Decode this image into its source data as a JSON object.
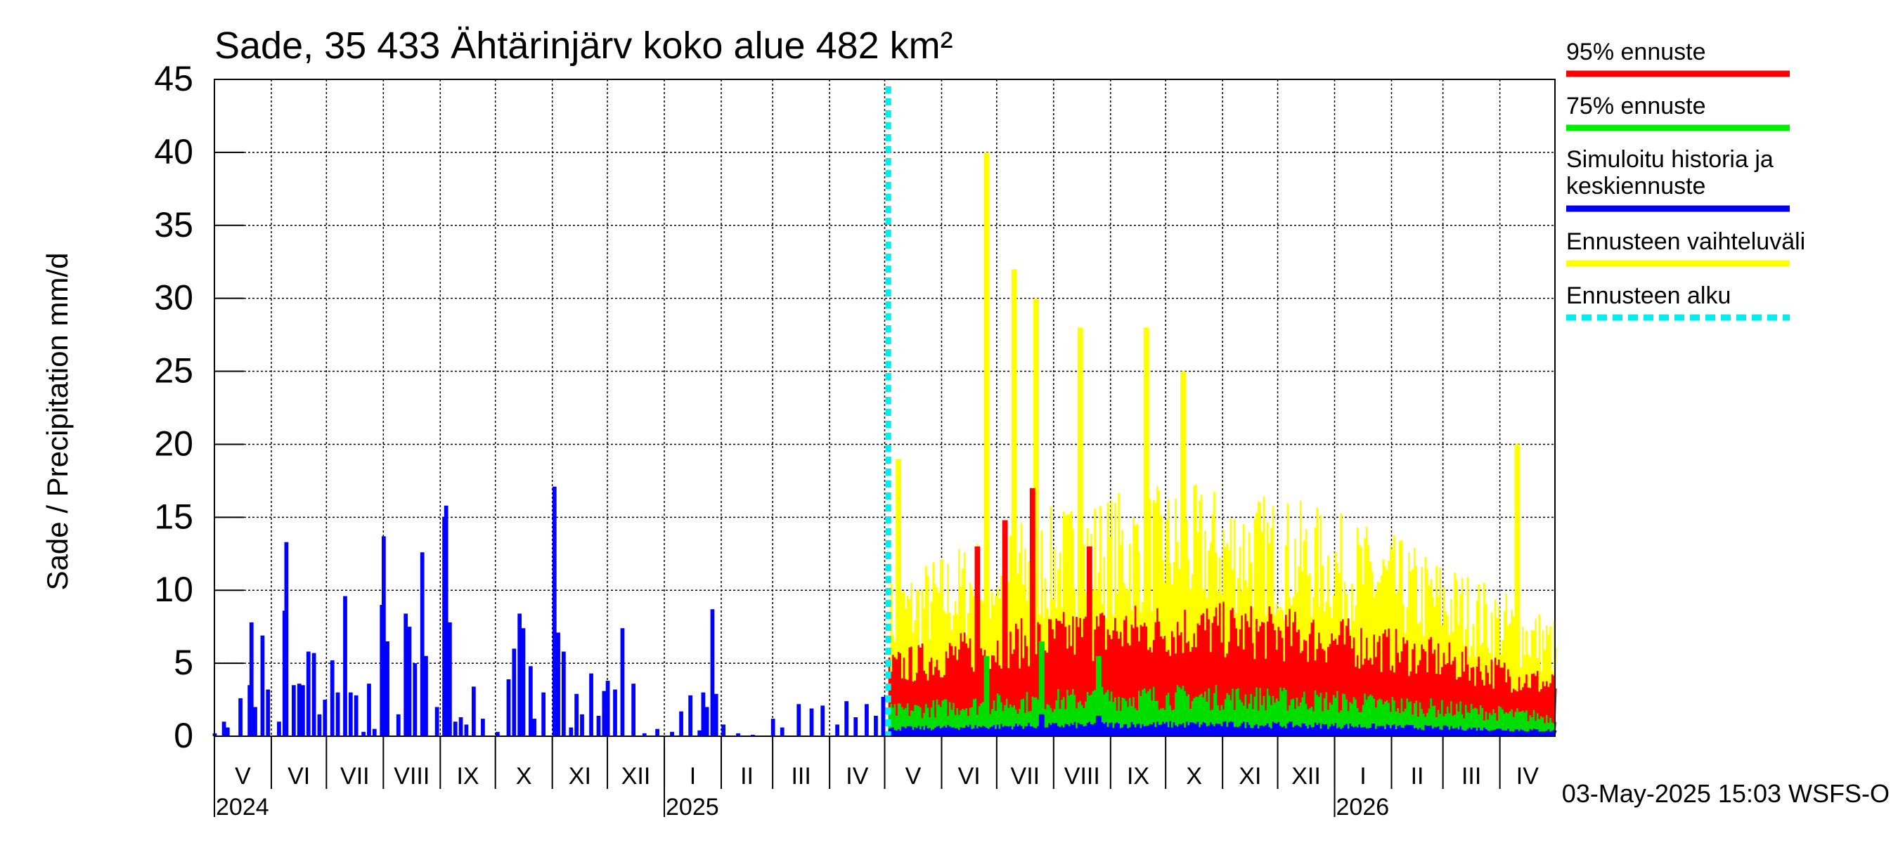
{
  "chart_data": {
    "type": "bar",
    "title": "Sade, 35 433 Ähtärinjärv koko alue 482 km²",
    "ylabel": "Sade / Precipitation   mm/d",
    "ylim": [
      0,
      45
    ],
    "yticks": [
      0,
      5,
      10,
      15,
      20,
      25,
      30,
      35,
      40,
      45
    ],
    "grid": true,
    "legend_position": "right",
    "x_start": "2024-05-01",
    "x_end": "2026-05-01",
    "forecast_start": "2025-05-03",
    "month_labels": [
      {
        "label": "V",
        "start": "2024-05-01",
        "end": "2024-06-01"
      },
      {
        "label": "VI",
        "start": "2024-06-01",
        "end": "2024-07-01"
      },
      {
        "label": "VII",
        "start": "2024-07-01",
        "end": "2024-08-01"
      },
      {
        "label": "VIII",
        "start": "2024-08-01",
        "end": "2024-09-01"
      },
      {
        "label": "IX",
        "start": "2024-09-01",
        "end": "2024-10-01"
      },
      {
        "label": "X",
        "start": "2024-10-01",
        "end": "2024-11-01"
      },
      {
        "label": "XI",
        "start": "2024-11-01",
        "end": "2024-12-01"
      },
      {
        "label": "XII",
        "start": "2024-12-01",
        "end": "2025-01-01"
      },
      {
        "label": "I",
        "start": "2025-01-01",
        "end": "2025-02-01"
      },
      {
        "label": "II",
        "start": "2025-02-01",
        "end": "2025-03-01"
      },
      {
        "label": "III",
        "start": "2025-03-01",
        "end": "2025-04-01"
      },
      {
        "label": "IV",
        "start": "2025-04-01",
        "end": "2025-05-01"
      },
      {
        "label": "V",
        "start": "2025-05-01",
        "end": "2025-06-01"
      },
      {
        "label": "VI",
        "start": "2025-06-01",
        "end": "2025-07-01"
      },
      {
        "label": "VII",
        "start": "2025-07-01",
        "end": "2025-08-01"
      },
      {
        "label": "VIII",
        "start": "2025-08-01",
        "end": "2025-09-01"
      },
      {
        "label": "IX",
        "start": "2025-09-01",
        "end": "2025-10-01"
      },
      {
        "label": "X",
        "start": "2025-10-01",
        "end": "2025-11-01"
      },
      {
        "label": "XI",
        "start": "2025-11-01",
        "end": "2025-12-01"
      },
      {
        "label": "XII",
        "start": "2025-12-01",
        "end": "2026-01-01"
      },
      {
        "label": "I",
        "start": "2026-01-01",
        "end": "2026-02-01"
      },
      {
        "label": "II",
        "start": "2026-02-01",
        "end": "2026-03-01"
      },
      {
        "label": "III",
        "start": "2026-03-01",
        "end": "2026-04-01"
      },
      {
        "label": "IV",
        "start": "2026-04-01",
        "end": "2026-05-01"
      }
    ],
    "year_labels": [
      {
        "label": "2024",
        "date": "2024-05-01"
      },
      {
        "label": "2025",
        "date": "2025-01-01"
      },
      {
        "label": "2026",
        "date": "2026-01-01"
      }
    ],
    "history": {
      "name": "Simuloitu historia ja keskiennuste",
      "color": "#0000ff",
      "points": [
        [
          "2024-05-01",
          0.2
        ],
        [
          "2024-05-06",
          1.0
        ],
        [
          "2024-05-08",
          0.6
        ],
        [
          "2024-05-15",
          2.6
        ],
        [
          "2024-05-20",
          3.5
        ],
        [
          "2024-05-21",
          7.8
        ],
        [
          "2024-05-23",
          2.0
        ],
        [
          "2024-05-27",
          6.9
        ],
        [
          "2024-05-30",
          3.2
        ],
        [
          "2024-06-05",
          1.0
        ],
        [
          "2024-06-08",
          8.6
        ],
        [
          "2024-06-09",
          13.3
        ],
        [
          "2024-06-13",
          3.5
        ],
        [
          "2024-06-16",
          3.6
        ],
        [
          "2024-06-18",
          3.5
        ],
        [
          "2024-06-21",
          5.8
        ],
        [
          "2024-06-24",
          5.7
        ],
        [
          "2024-06-27",
          1.5
        ],
        [
          "2024-06-30",
          2.5
        ],
        [
          "2024-07-04",
          5.2
        ],
        [
          "2024-07-07",
          3.0
        ],
        [
          "2024-07-11",
          9.6
        ],
        [
          "2024-07-14",
          3.0
        ],
        [
          "2024-07-17",
          2.8
        ],
        [
          "2024-07-21",
          0.3
        ],
        [
          "2024-07-24",
          3.6
        ],
        [
          "2024-07-27",
          0.5
        ],
        [
          "2024-07-31",
          9.0
        ],
        [
          "2024-08-01",
          13.7
        ],
        [
          "2024-08-03",
          6.5
        ],
        [
          "2024-08-09",
          1.5
        ],
        [
          "2024-08-13",
          8.4
        ],
        [
          "2024-08-15",
          7.5
        ],
        [
          "2024-08-18",
          5.0
        ],
        [
          "2024-08-22",
          12.6
        ],
        [
          "2024-08-24",
          5.5
        ],
        [
          "2024-08-30",
          2.0
        ],
        [
          "2024-09-03",
          15.0
        ],
        [
          "2024-09-04",
          15.8
        ],
        [
          "2024-09-06",
          7.8
        ],
        [
          "2024-09-09",
          1.0
        ],
        [
          "2024-09-12",
          1.3
        ],
        [
          "2024-09-15",
          0.8
        ],
        [
          "2024-09-19",
          3.4
        ],
        [
          "2024-09-24",
          1.2
        ],
        [
          "2024-10-02",
          0.3
        ],
        [
          "2024-10-08",
          3.9
        ],
        [
          "2024-10-11",
          6.0
        ],
        [
          "2024-10-14",
          8.4
        ],
        [
          "2024-10-16",
          7.4
        ],
        [
          "2024-10-20",
          4.8
        ],
        [
          "2024-10-22",
          1.2
        ],
        [
          "2024-10-27",
          3.0
        ],
        [
          "2024-11-02",
          17.1
        ],
        [
          "2024-11-04",
          7.1
        ],
        [
          "2024-11-07",
          5.8
        ],
        [
          "2024-11-11",
          0.6
        ],
        [
          "2024-11-14",
          2.9
        ],
        [
          "2024-11-17",
          1.5
        ],
        [
          "2024-11-22",
          4.3
        ],
        [
          "2024-11-26",
          1.4
        ],
        [
          "2024-11-29",
          3.1
        ],
        [
          "2024-12-01",
          3.8
        ],
        [
          "2024-12-05",
          3.2
        ],
        [
          "2024-12-09",
          7.4
        ],
        [
          "2024-12-15",
          3.6
        ],
        [
          "2024-12-21",
          0.2
        ],
        [
          "2024-12-28",
          0.5
        ],
        [
          "2025-01-05",
          0.3
        ],
        [
          "2025-01-10",
          1.7
        ],
        [
          "2025-01-15",
          2.8
        ],
        [
          "2025-01-20",
          0.4
        ],
        [
          "2025-01-22",
          3.0
        ],
        [
          "2025-01-24",
          2.0
        ],
        [
          "2025-01-27",
          8.7
        ],
        [
          "2025-01-29",
          2.9
        ],
        [
          "2025-02-02",
          0.8
        ],
        [
          "2025-02-10",
          0.2
        ],
        [
          "2025-02-18",
          0.1
        ],
        [
          "2025-03-01",
          1.2
        ],
        [
          "2025-03-06",
          0.6
        ],
        [
          "2025-03-15",
          2.2
        ],
        [
          "2025-03-22",
          1.9
        ],
        [
          "2025-03-28",
          2.1
        ],
        [
          "2025-04-05",
          0.8
        ],
        [
          "2025-04-10",
          2.4
        ],
        [
          "2025-04-15",
          1.3
        ],
        [
          "2025-04-21",
          2.2
        ],
        [
          "2025-04-26",
          1.4
        ],
        [
          "2025-04-30",
          2.7
        ]
      ]
    },
    "forecast_series": [
      {
        "name": "Ennusteen vaihteluväli",
        "color": "#ffff00",
        "base": 11,
        "amp": 9,
        "peaks": [
          [
            "2025-05-08",
            19
          ],
          [
            "2025-06-25",
            40
          ],
          [
            "2025-07-10",
            32
          ],
          [
            "2025-07-22",
            30
          ],
          [
            "2025-08-15",
            28
          ],
          [
            "2025-09-20",
            28
          ],
          [
            "2025-10-10",
            25
          ],
          [
            "2026-04-10",
            20
          ]
        ]
      },
      {
        "name": "95% ennuste",
        "color": "#ff0000",
        "base": 6.5,
        "amp": 4,
        "peaks": [
          [
            "2025-07-20",
            17
          ],
          [
            "2025-07-05",
            14.8
          ],
          [
            "2025-06-20",
            13
          ],
          [
            "2025-08-20",
            13
          ]
        ]
      },
      {
        "name": "75% ennuste",
        "color": "#00dd00",
        "base": 2.3,
        "amp": 1.8,
        "peaks": [
          [
            "2025-07-25",
            6.5
          ],
          [
            "2025-06-25",
            5.5
          ],
          [
            "2025-08-25",
            5.5
          ]
        ]
      },
      {
        "name": "Simuloitu historia ja keskiennuste",
        "color": "#0000ff",
        "base": 0.7,
        "amp": 0.5,
        "peaks": [
          [
            "2025-07-25",
            1.5
          ],
          [
            "2025-08-25",
            1.4
          ]
        ]
      }
    ],
    "legend": [
      {
        "label": "95% ennuste",
        "color": "#ff0000",
        "dashed": false
      },
      {
        "label": "75% ennuste",
        "color": "#00ee00",
        "dashed": false
      },
      {
        "label": "Simuloitu historia ja keskiennuste",
        "lines": [
          "Simuloitu historia ja",
          "keskiennuste"
        ],
        "color": "#0000ff",
        "dashed": false
      },
      {
        "label": "Ennusteen vaihteluväli",
        "color": "#ffff00",
        "dashed": false
      },
      {
        "label": "Ennusteen alku",
        "color": "#00eeee",
        "dashed": true
      }
    ],
    "footer": "03-May-2025 15:03 WSFS-O"
  }
}
